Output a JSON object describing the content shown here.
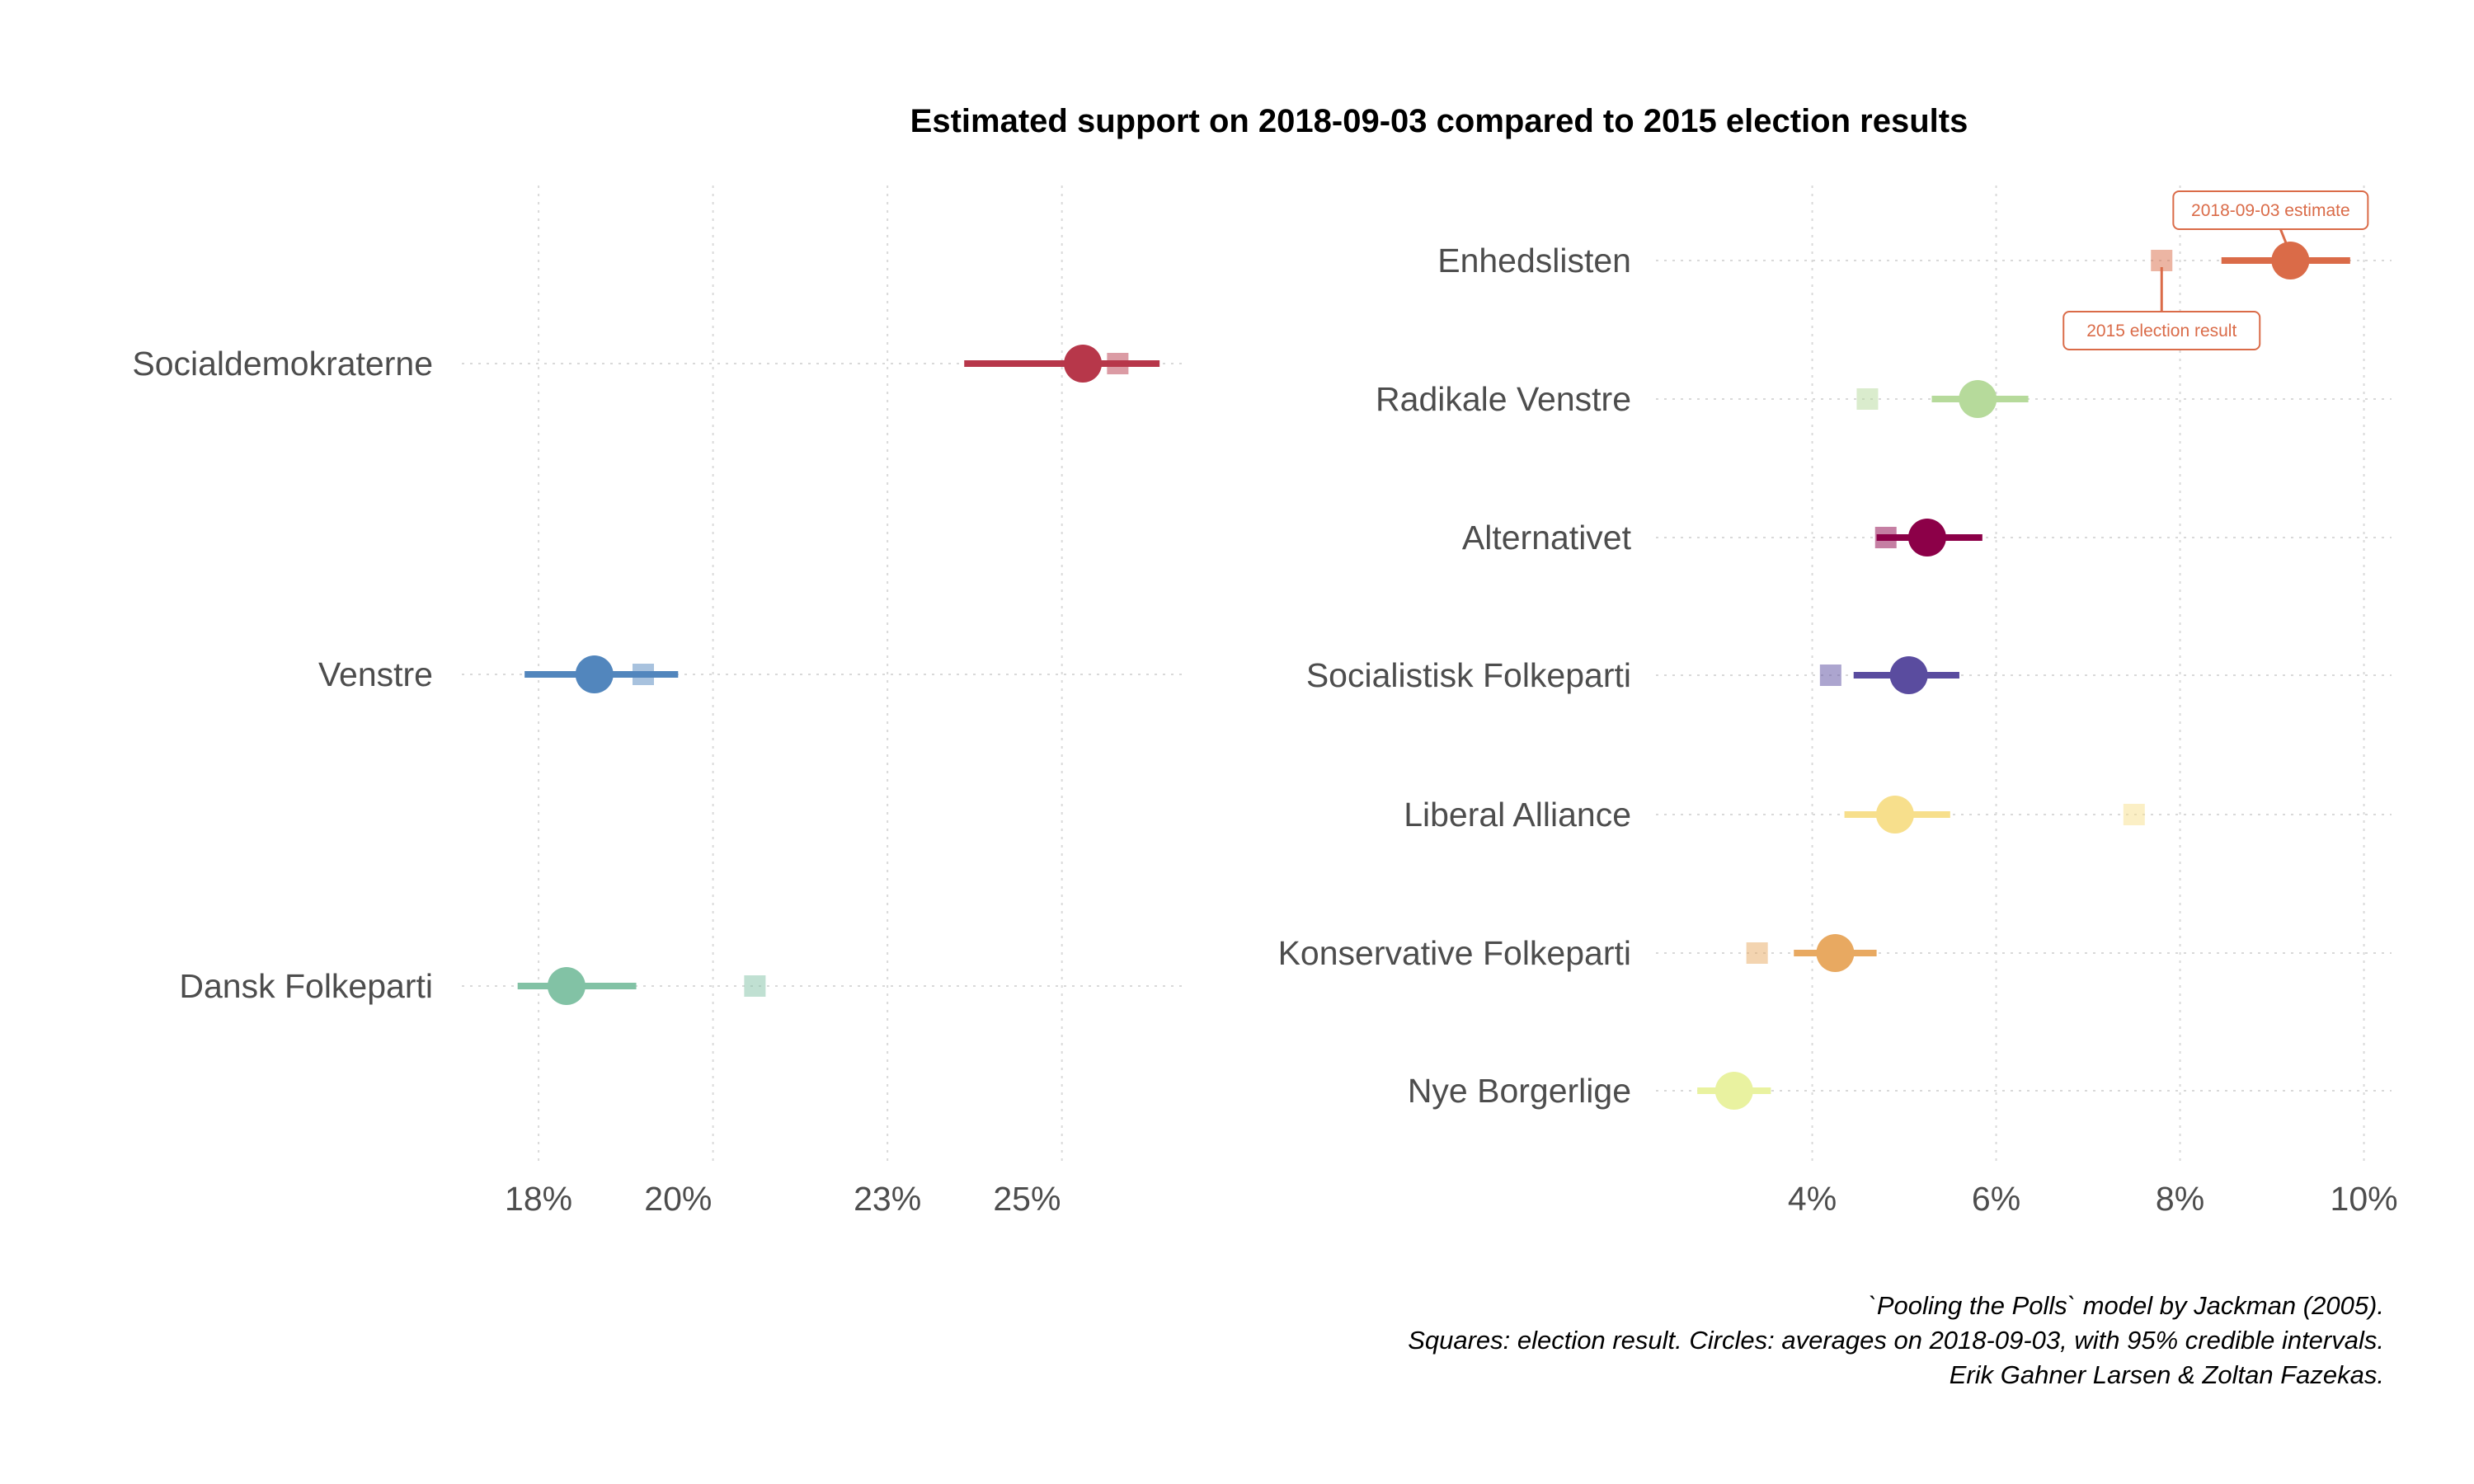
{
  "chart_data": {
    "title": "Estimated support on 2018-09-03 compared to 2015 election results",
    "caption": [
      "`Pooling the Polls` model by Jackman (2005).",
      "Squares: election result. Circles: averages on 2018-09-03, with 95% credible intervals.",
      "Erik Gahner Larsen & Zoltan Fazekas."
    ],
    "annotations": {
      "estimate_label": "2018-09-03 estimate",
      "election_label": "2015 election result"
    },
    "panels": [
      {
        "type": "dot-interval",
        "xlim": [
          16.9,
          27.3
        ],
        "ticks": [
          18,
          20,
          23,
          25
        ],
        "tick_labels": [
          "18%",
          "20%",
          "23%",
          "25%"
        ],
        "grid_x": [
          18,
          20.5,
          23,
          25.5
        ],
        "categories": [
          "Socialdemokraterne",
          "Venstre",
          "Dansk Folkeparti"
        ],
        "series": [
          {
            "category": "Socialdemokraterne",
            "estimate": 25.8,
            "lower": 24.1,
            "upper": 26.9,
            "election": 26.3,
            "color": "#b7374a"
          },
          {
            "category": "Venstre",
            "estimate": 18.8,
            "lower": 17.8,
            "upper": 20.0,
            "election": 19.5,
            "color": "#5286bd"
          },
          {
            "category": "Dansk Folkeparti",
            "estimate": 18.4,
            "lower": 17.7,
            "upper": 19.4,
            "election": 21.1,
            "color": "#82c2a5"
          }
        ]
      },
      {
        "type": "dot-interval",
        "xlim": [
          2.3,
          10.3
        ],
        "ticks": [
          4,
          6,
          8,
          10
        ],
        "tick_labels": [
          "4%",
          "6%",
          "8%",
          "10%"
        ],
        "grid_x": [
          4,
          6,
          8,
          10
        ],
        "categories": [
          "Enhedslisten",
          "Radikale Venstre",
          "Alternativet",
          "Socialistisk Folkeparti",
          "Liberal Alliance",
          "Konservative Folkeparti",
          "Nye Borgerlige"
        ],
        "series": [
          {
            "category": "Enhedslisten",
            "estimate": 9.2,
            "lower": 8.45,
            "upper": 9.85,
            "election": 7.8,
            "color": "#da6b48"
          },
          {
            "category": "Radikale Venstre",
            "estimate": 5.8,
            "lower": 5.3,
            "upper": 6.35,
            "election": 4.6,
            "color": "#b6da9b"
          },
          {
            "category": "Alternativet",
            "estimate": 5.25,
            "lower": 4.7,
            "upper": 5.85,
            "election": 4.8,
            "color": "#8c0048"
          },
          {
            "category": "Socialistisk Folkeparti",
            "estimate": 5.05,
            "lower": 4.45,
            "upper": 5.6,
            "election": 4.2,
            "color": "#5a4c9f"
          },
          {
            "category": "Liberal Alliance",
            "estimate": 4.9,
            "lower": 4.35,
            "upper": 5.5,
            "election": 7.5,
            "color": "#f7df8c"
          },
          {
            "category": "Konservative Folkeparti",
            "estimate": 4.25,
            "lower": 3.8,
            "upper": 4.7,
            "election": 3.4,
            "color": "#e8a961"
          },
          {
            "category": "Nye Borgerlige",
            "estimate": 3.15,
            "lower": 2.75,
            "upper": 3.55,
            "election": null,
            "color": "#e9f2a0"
          }
        ]
      }
    ]
  }
}
